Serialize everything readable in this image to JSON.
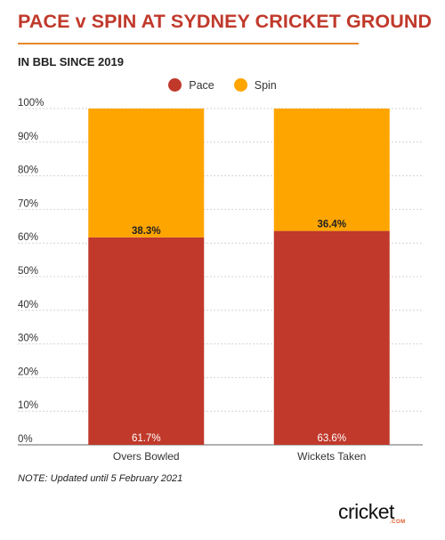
{
  "title": "PACE v SPIN AT SYDNEY CRICKET GROUND",
  "subtitle": "IN BBL SINCE 2019",
  "note": "NOTE: Updated until 5 February 2021",
  "logo": {
    "word": "cricket",
    "sub": ".COM"
  },
  "colors": {
    "pace": "#c0392b",
    "spin": "#ffa500",
    "title": "#c0392b",
    "rule": "#e8882a"
  },
  "chart_data": {
    "type": "bar",
    "stacked": true,
    "categories": [
      "Overs Bowled",
      "Wickets Taken"
    ],
    "series": [
      {
        "name": "Pace",
        "values": [
          61.7,
          63.6
        ],
        "labels": [
          "61.7%",
          "63.6%"
        ],
        "color": "#c0392b"
      },
      {
        "name": "Spin",
        "values": [
          38.3,
          36.4
        ],
        "labels": [
          "38.3%",
          "36.4%"
        ],
        "color": "#ffa500"
      }
    ],
    "yticks": [
      "0%",
      "10%",
      "20%",
      "30%",
      "40%",
      "50%",
      "60%",
      "70%",
      "80%",
      "90%",
      "100%"
    ],
    "ylim": [
      0,
      100
    ],
    "legend": "top-center",
    "grid": true
  }
}
